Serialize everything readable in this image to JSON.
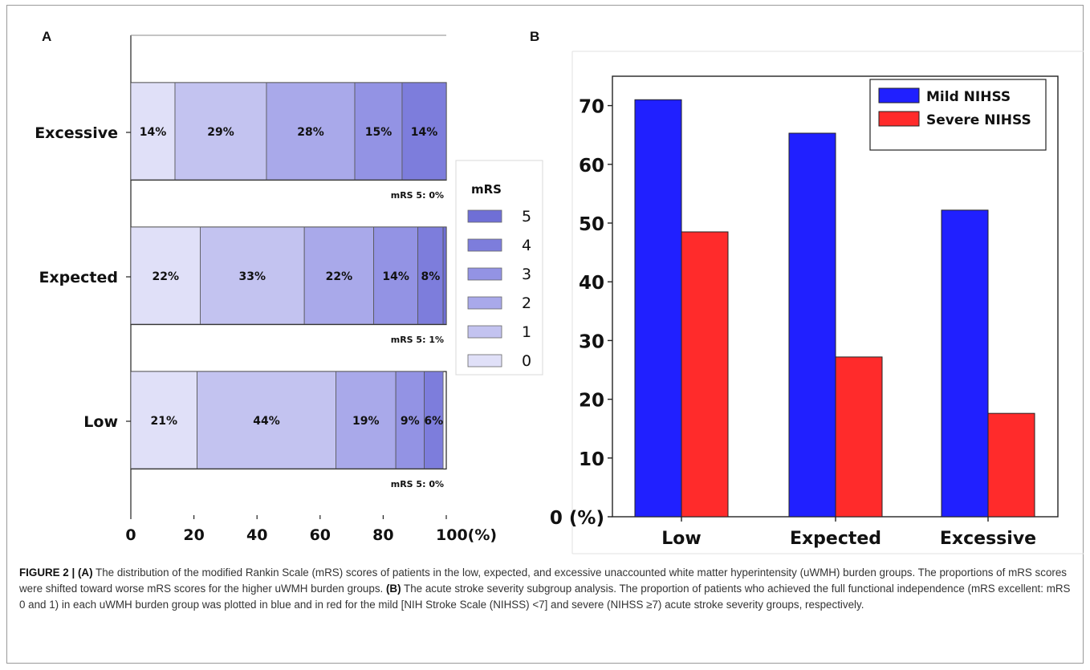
{
  "chart_data": [
    {
      "panel": "A",
      "type": "bar",
      "orientation": "horizontal",
      "stacked": true,
      "categories": [
        "Excessive",
        "Expected",
        "Low"
      ],
      "series": [
        {
          "name": "0",
          "values": [
            14,
            22,
            21
          ],
          "color": "#e0e0f8"
        },
        {
          "name": "1",
          "values": [
            29,
            33,
            44
          ],
          "color": "#c3c3f0"
        },
        {
          "name": "2",
          "values": [
            28,
            22,
            19
          ],
          "color": "#a9a9ea"
        },
        {
          "name": "3",
          "values": [
            15,
            14,
            9
          ],
          "color": "#9393e4"
        },
        {
          "name": "4",
          "values": [
            14,
            8,
            6
          ],
          "color": "#7d7ddc"
        },
        {
          "name": "5",
          "values": [
            0,
            1,
            0
          ],
          "color": "#6f6fd6"
        }
      ],
      "segment_labels": [
        [
          "14%",
          "29%",
          "28%",
          "15%",
          "14%"
        ],
        [
          "22%",
          "33%",
          "22%",
          "14%",
          "8%"
        ],
        [
          "21%",
          "44%",
          "19%",
          "9%",
          "6%"
        ]
      ],
      "notes": [
        "mRS 5: 0%",
        "mRS 5: 1%",
        "mRS 5: 0%"
      ],
      "x_ticks": [
        "0",
        "20",
        "40",
        "60",
        "80",
        "100(%)"
      ],
      "xlim": [
        0,
        100
      ],
      "legend": {
        "title": "mRS",
        "placement": "right",
        "order": [
          "5",
          "4",
          "3",
          "2",
          "1",
          "0"
        ]
      }
    },
    {
      "panel": "B",
      "type": "bar",
      "categories": [
        "Low",
        "Expected",
        "Excessive"
      ],
      "series": [
        {
          "name": "Mild NIHSS",
          "values": [
            71,
            65.3,
            52.2
          ],
          "color": "#2020ff"
        },
        {
          "name": "Severe NIHSS",
          "values": [
            48.5,
            27.2,
            17.6
          ],
          "color": "#ff2b2b"
        }
      ],
      "y_ticks": [
        "0 (%)",
        "10",
        "20",
        "30",
        "40",
        "50",
        "60",
        "70"
      ],
      "ylim": [
        0,
        75
      ],
      "legend": {
        "placement": "top-right"
      }
    }
  ],
  "caption": {
    "figure_label": "FIGURE 2 | ",
    "a_tag": "(A)",
    "a_text": " The distribution of the modified Rankin Scale (mRS) scores of patients in the low, expected, and excessive unaccounted white matter hyperintensity (uWMH) burden groups. The proportions of mRS scores were shifted toward worse mRS scores for the higher uWMH burden groups. ",
    "b_tag": "(B)",
    "b_text": " The acute stroke severity subgroup analysis. The proportion of patients who achieved the full functional independence (mRS excellent: mRS 0 and 1) in each uWMH burden group was plotted in blue and in red for the mild [NIH Stroke Scale (NIHSS) <7] and severe (NIHSS ≥7) acute stroke severity groups, respectively."
  }
}
